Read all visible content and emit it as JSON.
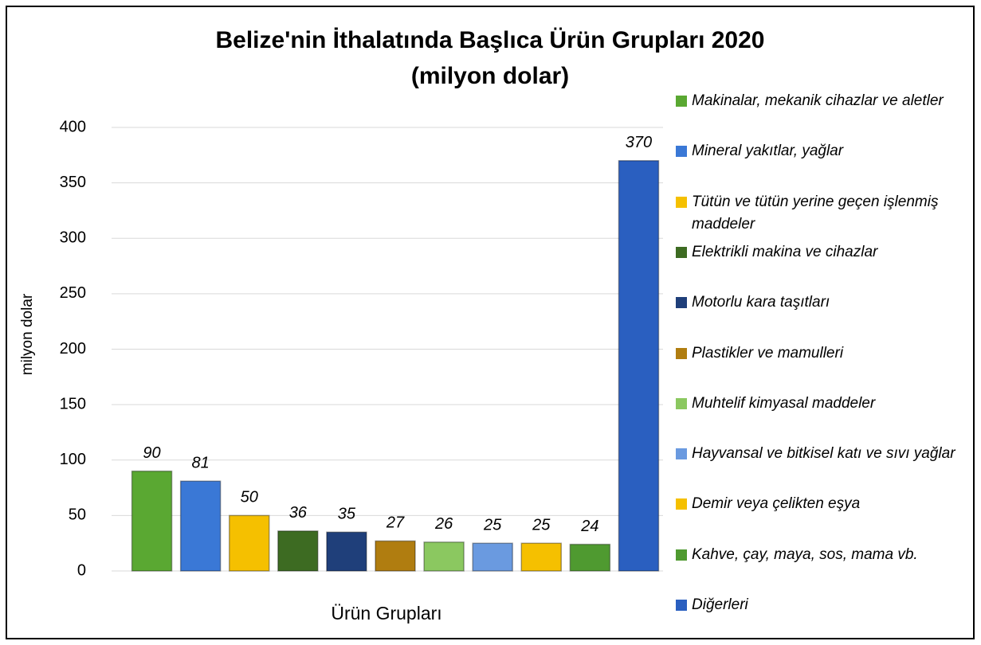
{
  "chart_data": {
    "type": "bar",
    "title": "Belize'nin İthalatında Başlıca Ürün Grupları 2020",
    "subtitle": "(milyon dolar)",
    "y_label": "milyon dolar",
    "x_label": "Ürün Grupları",
    "ylim": [
      0,
      400
    ],
    "yticks": [
      0,
      50,
      100,
      150,
      200,
      250,
      300,
      350,
      400
    ],
    "grid": true,
    "legend": "right",
    "series": [
      {
        "name": "Makinalar, mekanik cihazlar ve aletler",
        "color": "#5aa832",
        "values": [
          90
        ]
      },
      {
        "name": "Mineral yakıtlar, yağlar",
        "color": "#3a78d6",
        "values": [
          81
        ]
      },
      {
        "name": "Tütün ve tütün yerine geçen işlenmiş maddeler",
        "color": "#f5c000",
        "values": [
          50
        ]
      },
      {
        "name": "Elektrikli makina ve cihazlar",
        "color": "#3d6b22",
        "values": [
          36
        ]
      },
      {
        "name": "Motorlu kara taşıtları",
        "color": "#1f3f7a",
        "values": [
          35
        ]
      },
      {
        "name": "Plastikler ve mamulleri",
        "color": "#b07d10",
        "values": [
          27
        ]
      },
      {
        "name": "Muhtelif kimyasal maddeler",
        "color": "#8bc860",
        "values": [
          26
        ]
      },
      {
        "name": "Hayvansal ve bitkisel katı ve sıvı yağlar",
        "color": "#6a9ae0",
        "values": [
          25
        ]
      },
      {
        "name": "Demir veya çelikten eşya",
        "color": "#f5c000",
        "values": [
          25
        ]
      },
      {
        "name": "Kahve, çay, maya, sos, mama vb.",
        "color": "#4f9a30",
        "values": [
          24
        ]
      },
      {
        "name": "Diğerleri",
        "color": "#2a5fc0",
        "values": [
          370
        ]
      }
    ]
  }
}
